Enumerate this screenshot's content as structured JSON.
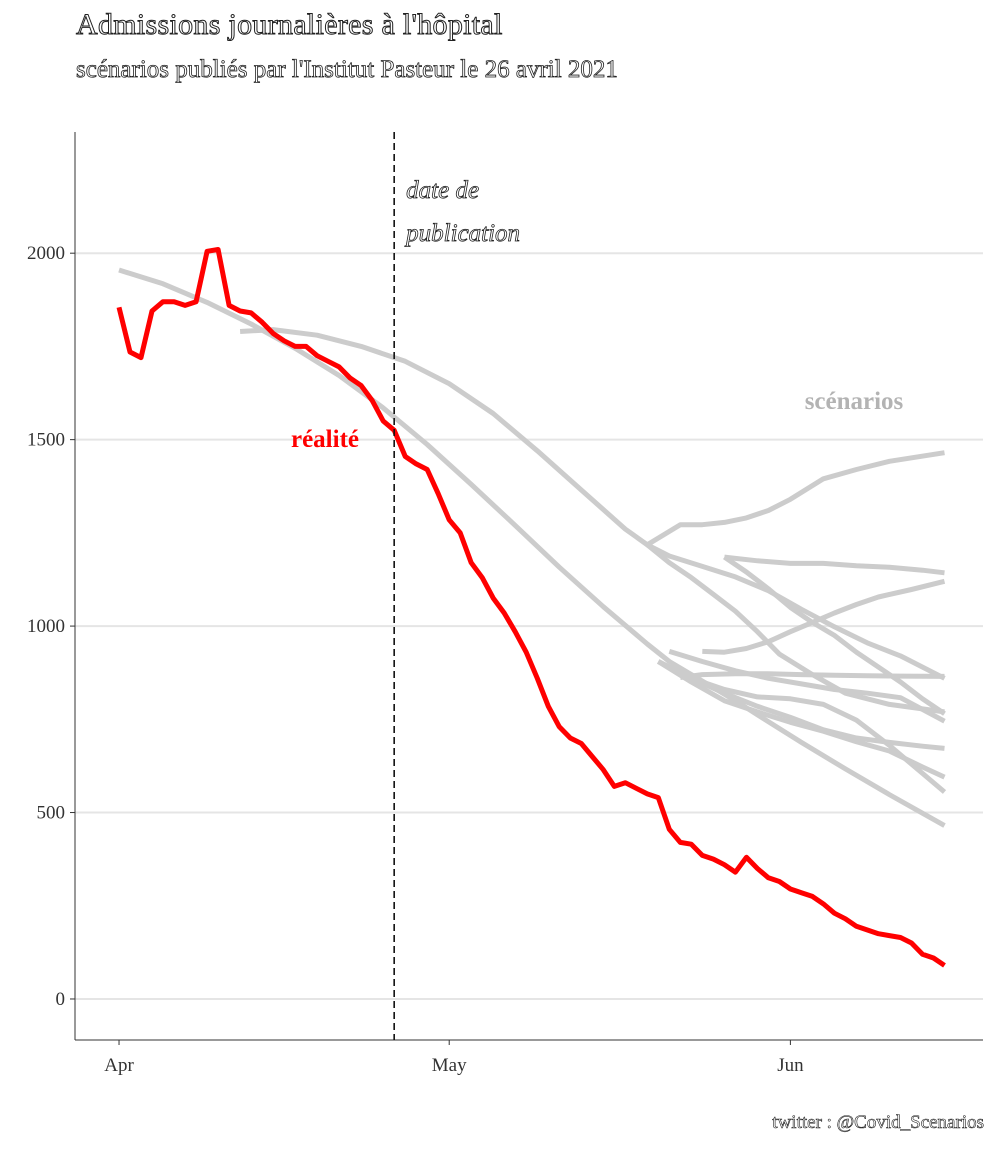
{
  "title": "Admissions journalières à l'hôpital",
  "subtitle": "scénarios publiés par l'Institut Pasteur le 26 avril 2021",
  "caption": "twitter : @Covid_Scenarios",
  "colors": {
    "reality": "#ff0000",
    "scenario": "#cccccc",
    "grid": "#e5e5e5"
  },
  "chart_data": {
    "type": "line",
    "title": "Admissions journalières à l'hôpital",
    "subtitle": "scénarios publiés par l'Institut Pasteur le 26 avril 2021",
    "xlabel": "",
    "ylabel": "",
    "x_ticks": [
      {
        "label": "Apr",
        "day": 0
      },
      {
        "label": "May",
        "day": 30
      },
      {
        "label": "Jun",
        "day": 61
      }
    ],
    "xlim_days_from_apr1": [
      -4,
      78.5
    ],
    "ylim": [
      -110,
      2325
    ],
    "y_ticks": [
      0,
      500,
      1000,
      1500,
      2000
    ],
    "grid": "horizontal",
    "publication_date": "2021-04-26",
    "annotations": {
      "publication": [
        "date de",
        "publication"
      ],
      "reality": "réalité",
      "scenarios": "scénarios"
    },
    "series": [
      {
        "label": "réalité",
        "color": "#ff0000",
        "x": [
          0,
          1,
          2,
          3,
          4,
          5,
          6,
          7,
          8,
          9,
          10,
          11,
          12,
          13,
          14,
          15,
          16,
          17,
          18,
          19,
          20,
          21,
          22,
          23,
          24,
          25,
          26,
          27,
          28,
          29,
          30,
          31,
          32,
          33,
          34,
          35,
          36,
          37,
          38,
          39,
          40,
          41,
          42,
          43,
          44,
          45,
          46,
          47,
          48,
          49,
          50,
          51,
          52,
          53,
          54,
          55,
          56,
          57,
          58,
          59,
          60,
          61,
          62,
          63,
          64,
          65,
          66,
          67,
          68,
          69,
          70,
          71,
          72,
          73,
          74,
          75
        ],
        "y": [
          1855,
          1735,
          1720,
          1845,
          1870,
          1870,
          1860,
          1870,
          2005,
          2010,
          1860,
          1845,
          1840,
          1815,
          1785,
          1765,
          1750,
          1750,
          1725,
          1710,
          1695,
          1665,
          1645,
          1605,
          1550,
          1525,
          1455,
          1435,
          1420,
          1355,
          1285,
          1250,
          1170,
          1130,
          1075,
          1035,
          985,
          930,
          860,
          785,
          730,
          700,
          685,
          650,
          615,
          570,
          580,
          565,
          550,
          540,
          455,
          420,
          415,
          385,
          375,
          360,
          340,
          380,
          350,
          325,
          315,
          295,
          285,
          275,
          255,
          230,
          215,
          195,
          185,
          175,
          170,
          165,
          150,
          120,
          110,
          90
        ]
      },
      {
        "label": "",
        "color": "#cccccc",
        "x": [
          0,
          4,
          8,
          12,
          16,
          20,
          24,
          28,
          32,
          36,
          40,
          44,
          48,
          50,
          56,
          58,
          62,
          66,
          70,
          75
        ],
        "y": [
          1955,
          1918,
          1868,
          1810,
          1745,
          1672,
          1585,
          1487,
          1380,
          1270,
          1158,
          1052,
          952,
          905,
          800,
          762,
          688,
          617,
          548,
          465
        ]
      },
      {
        "label": "",
        "color": "#cccccc",
        "x": [
          11,
          14,
          18,
          22,
          26,
          30,
          34,
          38,
          42,
          46,
          48,
          51,
          53,
          55,
          57,
          59,
          61,
          64,
          67,
          70,
          75
        ],
        "y": [
          1790,
          1795,
          1780,
          1750,
          1710,
          1650,
          1570,
          1470,
          1365,
          1260,
          1218,
          1272,
          1272,
          1278,
          1290,
          1310,
          1340,
          1395,
          1420,
          1442,
          1465
        ]
      },
      {
        "label": "",
        "color": "#cccccc",
        "x": [
          48,
          50,
          53,
          56,
          59,
          62,
          65,
          68,
          71,
          75
        ],
        "y": [
          1218,
          1188,
          1160,
          1132,
          1095,
          1045,
          998,
          955,
          920,
          860
        ]
      },
      {
        "label": "",
        "color": "#cccccc",
        "x": [
          48,
          50,
          52,
          54,
          56,
          58,
          60,
          63,
          66,
          70,
          75
        ],
        "y": [
          1218,
          1170,
          1130,
          1085,
          1040,
          985,
          925,
          870,
          820,
          790,
          770
        ]
      },
      {
        "label": "",
        "color": "#cccccc",
        "x": [
          55,
          58,
          61,
          64,
          67,
          70,
          73,
          75
        ],
        "y": [
          1185,
          1175,
          1168,
          1168,
          1162,
          1158,
          1150,
          1143
        ]
      },
      {
        "label": "",
        "color": "#cccccc",
        "x": [
          55,
          57,
          59,
          61,
          63,
          65,
          67,
          69,
          71,
          73,
          75
        ],
        "y": [
          1185,
          1145,
          1100,
          1050,
          1010,
          975,
          930,
          890,
          850,
          805,
          765
        ]
      },
      {
        "label": "",
        "color": "#cccccc",
        "x": [
          53,
          55,
          57,
          59,
          61,
          63,
          65,
          67,
          69,
          72,
          75
        ],
        "y": [
          932,
          930,
          940,
          958,
          985,
          1010,
          1035,
          1058,
          1078,
          1098,
          1120
        ]
      },
      {
        "label": "",
        "color": "#cccccc",
        "x": [
          50,
          53,
          56,
          59,
          62,
          65,
          68,
          71,
          75
        ],
        "y": [
          932,
          905,
          880,
          860,
          845,
          830,
          820,
          808,
          745
        ]
      },
      {
        "label": "",
        "color": "#cccccc",
        "x": [
          51,
          53,
          56,
          59,
          62,
          65,
          68,
          71,
          75
        ],
        "y": [
          862,
          870,
          872,
          872,
          870,
          868,
          867,
          866,
          865
        ]
      },
      {
        "label": "",
        "color": "#cccccc",
        "x": [
          49,
          52,
          55,
          58,
          61,
          64,
          67,
          70,
          73,
          75
        ],
        "y": [
          905,
          860,
          820,
          785,
          755,
          722,
          700,
          688,
          678,
          672
        ]
      },
      {
        "label": "",
        "color": "#cccccc",
        "x": [
          49,
          52,
          55,
          58,
          61,
          64,
          67,
          70,
          73,
          75
        ],
        "y": [
          905,
          850,
          800,
          770,
          742,
          718,
          690,
          665,
          622,
          595
        ]
      },
      {
        "label": "",
        "color": "#cccccc",
        "x": [
          49,
          52,
          55,
          58,
          61,
          64,
          67,
          70,
          73,
          75
        ],
        "y": [
          905,
          860,
          830,
          810,
          805,
          790,
          748,
          680,
          605,
          555
        ]
      }
    ]
  }
}
